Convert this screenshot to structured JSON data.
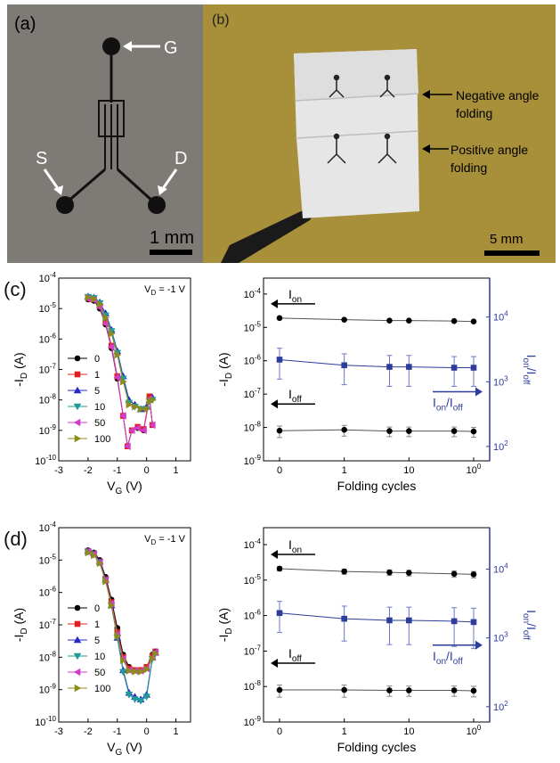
{
  "panels": {
    "a": {
      "label": "(a)",
      "terminals": {
        "gate": "G",
        "source": "S",
        "drain": "D"
      },
      "scale_bar": "1 mm"
    },
    "b": {
      "label": "(b)",
      "annotations": {
        "negative": [
          "Negative angle",
          "folding"
        ],
        "positive": [
          "Positive angle",
          "folding"
        ]
      },
      "scale_bar": "5 mm"
    },
    "c": {
      "label": "(c)"
    },
    "d": {
      "label": "(d)"
    }
  },
  "colors": {
    "black": "#000000",
    "red": "#e0201f",
    "blue": "#2828c8",
    "teal": "#1f9a96",
    "magenta": "#d23cc8",
    "olive": "#8c8c1e",
    "axis_blue": "#2e3c9c",
    "photo_bg_a": "#7e7a76",
    "photo_bg_b": "#a88f3a"
  },
  "chart_data": [
    {
      "id": "c-left",
      "type": "line",
      "annotation": "V_D = -1 V",
      "xlabel": "V_G (V)",
      "ylabel": "-I_D (A)",
      "xlim": [
        -3,
        1.5
      ],
      "ylim": [
        1e-10,
        0.0001
      ],
      "y_scale": "log",
      "x_ticks": [
        "-3",
        "-2",
        "-1",
        "0",
        "1"
      ],
      "y_ticks": [
        "10-10",
        "10-9",
        "10-8",
        "10-7",
        "10-6",
        "10-5",
        "10-4"
      ],
      "legend": [
        "0",
        "1",
        "5",
        "10",
        "50",
        "100"
      ],
      "series": [
        {
          "name": "0",
          "color": "#000000",
          "marker": "circle",
          "x": [
            -2.0,
            -1.8,
            -1.6,
            -1.4,
            -1.2,
            -1.0,
            -0.8,
            -0.65,
            -0.5,
            -0.3,
            -0.1,
            0.1,
            0.2
          ],
          "y": [
            2e-05,
            1.8e-05,
            1e-05,
            3e-06,
            5e-07,
            5e-08,
            3e-09,
            3e-10,
            1e-09,
            1.2e-09,
            1e-09,
            1.2e-08,
            1.5e-09
          ]
        },
        {
          "name": "1",
          "color": "#e0201f",
          "marker": "square",
          "x": [
            -2.0,
            -1.8,
            -1.6,
            -1.4,
            -1.2,
            -1.0,
            -0.8,
            -0.65,
            -0.5,
            -0.3,
            -0.1,
            0.1,
            0.2
          ],
          "y": [
            2.2e-05,
            2e-05,
            1.2e-05,
            3.5e-06,
            6e-07,
            6e-08,
            3e-09,
            3e-10,
            1e-09,
            1.3e-09,
            1.1e-09,
            1.3e-08,
            1.5e-09
          ]
        },
        {
          "name": "5",
          "color": "#2828c8",
          "marker": "triangle-up",
          "x": [
            -2.0,
            -1.8,
            -1.6,
            -1.4,
            -1.2,
            -1.0,
            -0.8,
            -0.6,
            -0.4,
            -0.2,
            0.0,
            0.1,
            0.2
          ],
          "y": [
            2.5e-05,
            2.3e-05,
            1.6e-05,
            7e-06,
            2e-06,
            4e-07,
            6e-08,
            1e-08,
            7e-09,
            5e-09,
            6e-09,
            1e-08,
            1.2e-08
          ]
        },
        {
          "name": "10",
          "color": "#1f9a96",
          "marker": "triangle-down",
          "x": [
            -2.0,
            -1.8,
            -1.6,
            -1.4,
            -1.2,
            -1.0,
            -0.8,
            -0.6,
            -0.4,
            -0.2,
            0.0,
            0.1,
            0.2
          ],
          "y": [
            2.4e-05,
            2.2e-05,
            1.5e-05,
            6e-06,
            1.8e-06,
            3.5e-07,
            5e-08,
            8e-09,
            6e-09,
            5e-09,
            5e-09,
            9e-09,
            1e-08
          ]
        },
        {
          "name": "50",
          "color": "#d23cc8",
          "marker": "triangle-left",
          "x": [
            -2.0,
            -1.8,
            -1.6,
            -1.4,
            -1.2,
            -1.0,
            -0.8,
            -0.65,
            -0.5,
            -0.3,
            -0.1,
            0.1,
            0.2
          ],
          "y": [
            2.1e-05,
            1.9e-05,
            1.1e-05,
            3.2e-06,
            5.5e-07,
            5.5e-08,
            3e-09,
            3e-10,
            1e-09,
            1.2e-09,
            1e-09,
            1.1e-08,
            1.5e-09
          ]
        },
        {
          "name": "100",
          "color": "#8c8c1e",
          "marker": "triangle-right",
          "x": [
            -2.0,
            -1.8,
            -1.6,
            -1.4,
            -1.2,
            -1.0,
            -0.8,
            -0.6,
            -0.4,
            -0.2,
            0.0,
            0.1,
            0.2
          ],
          "y": [
            2.3e-05,
            2.1e-05,
            1.4e-05,
            5e-06,
            1.5e-06,
            3e-07,
            4e-08,
            7e-09,
            6e-09,
            5e-09,
            5e-09,
            9e-09,
            1e-08
          ]
        }
      ]
    },
    {
      "id": "c-right",
      "type": "line",
      "xlabel": "Folding cycles",
      "ylabel": "-I_D (A)",
      "y2label": "I_on/I_off",
      "x_scale": "log",
      "y_scale": "log",
      "y2_scale": "log",
      "x_ticks": [
        "0",
        "1",
        "10",
        "100"
      ],
      "y_ticks": [
        "10-9",
        "10-8",
        "10-7",
        "10-6",
        "10-5",
        "10-4"
      ],
      "y2_ticks": [
        "102",
        "103",
        "104"
      ],
      "ylim": [
        1e-09,
        0.0003
      ],
      "y2lim": [
        60,
        40000
      ],
      "annotations": [
        "Ion",
        "Ioff",
        "Ion/Ioff"
      ],
      "x": [
        0,
        1,
        5,
        10,
        50,
        100
      ],
      "series": [
        {
          "name": "Ion",
          "axis": "left",
          "color": "#000000",
          "marker": "circle",
          "y": [
            1.9e-05,
            1.7e-05,
            1.6e-05,
            1.6e-05,
            1.55e-05,
            1.5e-05
          ]
        },
        {
          "name": "Ion/Ioff",
          "axis": "right",
          "color": "#2e3c9c",
          "marker": "square",
          "y": [
            2200,
            1800,
            1700,
            1700,
            1650,
            1650
          ],
          "err": [
            1100,
            900,
            850,
            850,
            800,
            800
          ]
        },
        {
          "name": "Ioff",
          "axis": "left",
          "color": "#000000",
          "marker": "circle",
          "y": [
            8e-09,
            8.5e-09,
            7.8e-09,
            7.8e-09,
            7.8e-09,
            7.6e-09
          ],
          "err": [
            3e-09,
            3e-09,
            2.5e-09,
            2.5e-09,
            2.5e-09,
            2.5e-09
          ]
        }
      ]
    },
    {
      "id": "d-left",
      "type": "line",
      "annotation": "V_D = -1 V",
      "xlabel": "V_G (V)",
      "ylabel": "-I_D (A)",
      "xlim": [
        -3,
        1.5
      ],
      "ylim": [
        1e-10,
        0.0001
      ],
      "y_scale": "log",
      "x_ticks": [
        "-3",
        "-2",
        "-1",
        "0",
        "1"
      ],
      "y_ticks": [
        "10-10",
        "10-9",
        "10-8",
        "10-7",
        "10-6",
        "10-5",
        "10-4"
      ],
      "legend": [
        "0",
        "1",
        "5",
        "10",
        "50",
        "100"
      ],
      "series": [
        {
          "name": "0",
          "color": "#000000",
          "marker": "circle",
          "x": [
            -2.0,
            -1.8,
            -1.6,
            -1.4,
            -1.2,
            -1.0,
            -0.8,
            -0.6,
            -0.4,
            -0.2,
            0.0,
            0.2,
            0.3
          ],
          "y": [
            2e-05,
            1.7e-05,
            1e-05,
            3e-06,
            6e-07,
            8e-08,
            1.2e-08,
            5e-09,
            4e-09,
            4e-09,
            5e-09,
            1.2e-08,
            1.5e-08
          ]
        },
        {
          "name": "1",
          "color": "#e0201f",
          "marker": "square",
          "x": [
            -2.0,
            -1.8,
            -1.6,
            -1.4,
            -1.2,
            -1.0,
            -0.8,
            -0.6,
            -0.4,
            -0.2,
            0.0,
            0.2,
            0.3
          ],
          "y": [
            1.9e-05,
            1.6e-05,
            9e-06,
            2.6e-06,
            5e-07,
            6e-08,
            1e-08,
            4.5e-09,
            4e-09,
            4e-09,
            5e-09,
            1.1e-08,
            1.5e-08
          ]
        },
        {
          "name": "5",
          "color": "#2828c8",
          "marker": "triangle-up",
          "x": [
            -2.0,
            -1.8,
            -1.6,
            -1.4,
            -1.2,
            -1.0,
            -0.8,
            -0.6,
            -0.4,
            -0.2,
            0.0,
            0.2,
            0.3
          ],
          "y": [
            1.9e-05,
            1.6e-05,
            9e-06,
            2.5e-06,
            4e-07,
            4e-08,
            4e-09,
            8e-10,
            6e-10,
            5e-10,
            7e-10,
            1e-08,
            1.4e-08
          ]
        },
        {
          "name": "10",
          "color": "#1f9a96",
          "marker": "triangle-down",
          "x": [
            -2.0,
            -1.8,
            -1.6,
            -1.4,
            -1.2,
            -1.0,
            -0.8,
            -0.6,
            -0.4,
            -0.2,
            0.0,
            0.2,
            0.3
          ],
          "y": [
            1.8e-05,
            1.5e-05,
            8.5e-06,
            2.4e-06,
            4e-07,
            4e-08,
            3.5e-09,
            7e-10,
            5e-10,
            4.5e-10,
            6e-10,
            9e-09,
            1.3e-08
          ]
        },
        {
          "name": "50",
          "color": "#d23cc8",
          "marker": "triangle-left",
          "x": [
            -2.0,
            -1.8,
            -1.6,
            -1.4,
            -1.2,
            -1.0,
            -0.8,
            -0.6,
            -0.4,
            -0.2,
            0.0,
            0.2,
            0.3
          ],
          "y": [
            1.8e-05,
            1.5e-05,
            8.5e-06,
            2.4e-06,
            4.5e-07,
            5e-08,
            9e-09,
            4e-09,
            3.8e-09,
            3.8e-09,
            4.5e-09,
            1e-08,
            1.4e-08
          ]
        },
        {
          "name": "100",
          "color": "#8c8c1e",
          "marker": "triangle-right",
          "x": [
            -2.0,
            -1.8,
            -1.6,
            -1.4,
            -1.2,
            -1.0,
            -0.8,
            -0.6,
            -0.4,
            -0.2,
            0.0,
            0.2,
            0.3
          ],
          "y": [
            1.7e-05,
            1.4e-05,
            8e-06,
            2.2e-06,
            4e-07,
            4.5e-08,
            8e-09,
            3.8e-09,
            3.6e-09,
            3.6e-09,
            4.2e-09,
            9e-09,
            1.3e-08
          ]
        }
      ]
    },
    {
      "id": "d-right",
      "type": "line",
      "xlabel": "Folding cycles",
      "ylabel": "-I_D (A)",
      "y2label": "I_on/I_off",
      "x_scale": "log",
      "y_scale": "log",
      "y2_scale": "log",
      "x_ticks": [
        "0",
        "1",
        "10",
        "100"
      ],
      "y_ticks": [
        "10-9",
        "10-8",
        "10-7",
        "10-6",
        "10-5",
        "10-4"
      ],
      "y2_ticks": [
        "102",
        "103",
        "104"
      ],
      "ylim": [
        1e-09,
        0.0003
      ],
      "y2lim": [
        60,
        40000
      ],
      "annotations": [
        "Ion",
        "Ioff",
        "Ion/Ioff"
      ],
      "x": [
        0,
        1,
        5,
        10,
        50,
        100
      ],
      "series": [
        {
          "name": "Ion",
          "axis": "left",
          "color": "#000000",
          "marker": "circle",
          "y": [
            2.1e-05,
            1.75e-05,
            1.65e-05,
            1.6e-05,
            1.5e-05,
            1.45e-05
          ],
          "err": [
            3e-06,
            3e-06,
            3e-06,
            3e-06,
            3e-06,
            3e-06
          ]
        },
        {
          "name": "Ion/Ioff",
          "axis": "right",
          "color": "#2e3c9c",
          "marker": "square",
          "y": [
            2300,
            1900,
            1800,
            1800,
            1750,
            1700
          ],
          "err": [
            1100,
            1000,
            1000,
            1000,
            1000,
            1000
          ]
        },
        {
          "name": "Ioff",
          "axis": "left",
          "color": "#000000",
          "marker": "circle",
          "y": [
            8e-09,
            8e-09,
            7.8e-09,
            7.8e-09,
            7.8e-09,
            7.6e-09
          ],
          "err": [
            3e-09,
            3e-09,
            2.5e-09,
            2.5e-09,
            2.5e-09,
            2.5e-09
          ]
        }
      ]
    }
  ]
}
